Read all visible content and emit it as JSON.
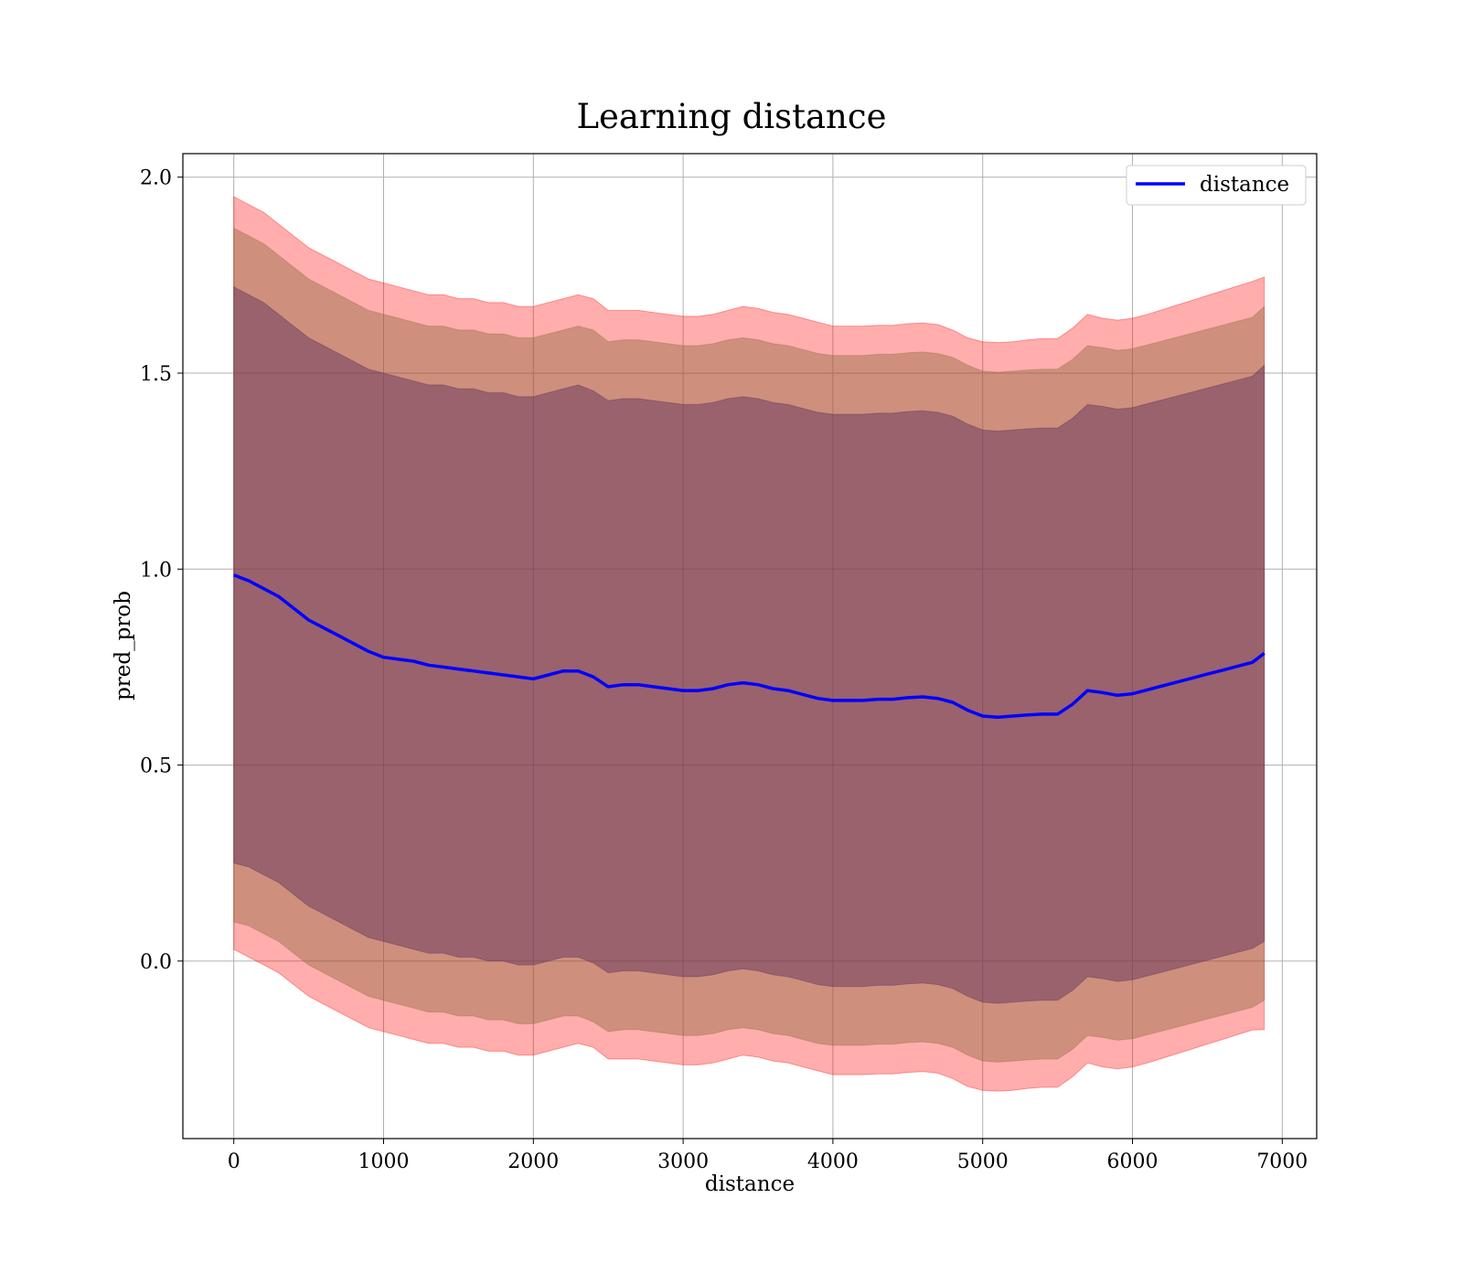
{
  "chart_data": {
    "type": "line",
    "title": "Learning distance",
    "xlabel": "distance",
    "ylabel": "pred_prob",
    "xlim": [
      -340,
      7230
    ],
    "ylim": [
      -0.453,
      2.06
    ],
    "xticks": [
      0,
      1000,
      2000,
      3000,
      4000,
      5000,
      6000,
      7000
    ],
    "xtick_labels": [
      "0",
      "1000",
      "2000",
      "3000",
      "4000",
      "5000",
      "6000",
      "7000"
    ],
    "yticks": [
      0.0,
      0.5,
      1.0,
      1.5,
      2.0
    ],
    "ytick_labels": [
      "0.0",
      "0.5",
      "1.0",
      "1.5",
      "2.0"
    ],
    "grid": true,
    "legend_position": "top-right",
    "series": [
      {
        "name": "distance",
        "color": "#0000ff",
        "x": [
          0,
          100,
          200,
          300,
          400,
          500,
          600,
          700,
          800,
          900,
          1000,
          1100,
          1200,
          1300,
          1400,
          1500,
          1600,
          1700,
          1800,
          1900,
          2000,
          2100,
          2200,
          2300,
          2400,
          2500,
          2600,
          2700,
          2800,
          2900,
          3000,
          3100,
          3200,
          3300,
          3400,
          3500,
          3600,
          3700,
          3800,
          3900,
          4000,
          4100,
          4200,
          4300,
          4400,
          4500,
          4600,
          4700,
          4800,
          4900,
          5000,
          5100,
          5200,
          5300,
          5400,
          5500,
          5600,
          5700,
          5800,
          5900,
          6000,
          6100,
          6200,
          6300,
          6400,
          6500,
          6600,
          6700,
          6800,
          6880
        ],
        "y": [
          0.985,
          0.97,
          0.95,
          0.93,
          0.9,
          0.87,
          0.85,
          0.83,
          0.81,
          0.79,
          0.775,
          0.77,
          0.765,
          0.755,
          0.75,
          0.745,
          0.74,
          0.735,
          0.73,
          0.725,
          0.72,
          0.73,
          0.74,
          0.74,
          0.725,
          0.7,
          0.705,
          0.705,
          0.7,
          0.695,
          0.69,
          0.69,
          0.695,
          0.705,
          0.71,
          0.705,
          0.695,
          0.69,
          0.68,
          0.67,
          0.665,
          0.665,
          0.665,
          0.668,
          0.668,
          0.672,
          0.674,
          0.67,
          0.66,
          0.64,
          0.625,
          0.622,
          0.625,
          0.628,
          0.63,
          0.63,
          0.655,
          0.69,
          0.685,
          0.678,
          0.682,
          0.692,
          0.702,
          0.712,
          0.722,
          0.732,
          0.742,
          0.752,
          0.762,
          0.785
        ]
      }
    ],
    "bands": [
      {
        "color": "#ff0000",
        "opacity": 0.32,
        "upper": [
          1.95,
          1.93,
          1.91,
          1.88,
          1.85,
          1.82,
          1.8,
          1.78,
          1.76,
          1.74,
          1.73,
          1.72,
          1.71,
          1.7,
          1.7,
          1.69,
          1.69,
          1.68,
          1.68,
          1.67,
          1.67,
          1.68,
          1.69,
          1.7,
          1.69,
          1.66,
          1.66,
          1.66,
          1.655,
          1.65,
          1.645,
          1.645,
          1.65,
          1.66,
          1.67,
          1.665,
          1.655,
          1.65,
          1.64,
          1.63,
          1.62,
          1.62,
          1.62,
          1.622,
          1.622,
          1.626,
          1.628,
          1.624,
          1.61,
          1.59,
          1.58,
          1.578,
          1.58,
          1.585,
          1.588,
          1.588,
          1.615,
          1.65,
          1.64,
          1.635,
          1.64,
          1.65,
          1.662,
          1.674,
          1.686,
          1.698,
          1.71,
          1.722,
          1.734,
          1.745
        ],
        "lower": [
          0.03,
          0.01,
          -0.01,
          -0.03,
          -0.06,
          -0.09,
          -0.11,
          -0.13,
          -0.15,
          -0.17,
          -0.18,
          -0.19,
          -0.2,
          -0.21,
          -0.21,
          -0.22,
          -0.22,
          -0.23,
          -0.23,
          -0.24,
          -0.24,
          -0.23,
          -0.22,
          -0.21,
          -0.22,
          -0.25,
          -0.25,
          -0.25,
          -0.255,
          -0.26,
          -0.265,
          -0.265,
          -0.26,
          -0.25,
          -0.24,
          -0.245,
          -0.255,
          -0.26,
          -0.27,
          -0.28,
          -0.29,
          -0.29,
          -0.29,
          -0.288,
          -0.288,
          -0.284,
          -0.282,
          -0.286,
          -0.3,
          -0.32,
          -0.33,
          -0.332,
          -0.33,
          -0.325,
          -0.322,
          -0.322,
          -0.295,
          -0.26,
          -0.27,
          -0.275,
          -0.27,
          -0.26,
          -0.248,
          -0.236,
          -0.224,
          -0.212,
          -0.2,
          -0.188,
          -0.176,
          -0.175
        ]
      },
      {
        "color": "#8b6a3c",
        "opacity": 0.42,
        "upper": [
          1.87,
          1.85,
          1.83,
          1.8,
          1.77,
          1.74,
          1.72,
          1.7,
          1.68,
          1.66,
          1.65,
          1.64,
          1.63,
          1.62,
          1.62,
          1.61,
          1.61,
          1.6,
          1.6,
          1.59,
          1.59,
          1.6,
          1.61,
          1.62,
          1.61,
          1.58,
          1.585,
          1.585,
          1.58,
          1.575,
          1.57,
          1.57,
          1.575,
          1.585,
          1.59,
          1.585,
          1.575,
          1.57,
          1.56,
          1.55,
          1.545,
          1.545,
          1.545,
          1.548,
          1.548,
          1.552,
          1.554,
          1.55,
          1.54,
          1.52,
          1.505,
          1.502,
          1.505,
          1.508,
          1.51,
          1.51,
          1.535,
          1.57,
          1.565,
          1.558,
          1.562,
          1.572,
          1.582,
          1.592,
          1.602,
          1.612,
          1.622,
          1.632,
          1.642,
          1.67
        ],
        "lower": [
          0.1,
          0.09,
          0.07,
          0.05,
          0.02,
          -0.01,
          -0.03,
          -0.05,
          -0.07,
          -0.09,
          -0.1,
          -0.11,
          -0.12,
          -0.13,
          -0.13,
          -0.14,
          -0.14,
          -0.15,
          -0.15,
          -0.16,
          -0.16,
          -0.15,
          -0.14,
          -0.14,
          -0.155,
          -0.18,
          -0.175,
          -0.175,
          -0.18,
          -0.185,
          -0.19,
          -0.19,
          -0.185,
          -0.175,
          -0.17,
          -0.175,
          -0.185,
          -0.19,
          -0.2,
          -0.21,
          -0.215,
          -0.215,
          -0.215,
          -0.212,
          -0.212,
          -0.208,
          -0.206,
          -0.21,
          -0.22,
          -0.24,
          -0.255,
          -0.258,
          -0.255,
          -0.252,
          -0.25,
          -0.25,
          -0.225,
          -0.19,
          -0.195,
          -0.202,
          -0.198,
          -0.188,
          -0.178,
          -0.168,
          -0.158,
          -0.148,
          -0.138,
          -0.128,
          -0.118,
          -0.1
        ]
      },
      {
        "color": "#5a2a5a",
        "opacity": 0.45,
        "upper": [
          1.72,
          1.7,
          1.68,
          1.65,
          1.62,
          1.59,
          1.57,
          1.55,
          1.53,
          1.51,
          1.5,
          1.49,
          1.48,
          1.47,
          1.47,
          1.46,
          1.46,
          1.45,
          1.45,
          1.44,
          1.44,
          1.45,
          1.46,
          1.47,
          1.455,
          1.43,
          1.435,
          1.435,
          1.43,
          1.425,
          1.42,
          1.42,
          1.425,
          1.435,
          1.44,
          1.435,
          1.425,
          1.42,
          1.41,
          1.4,
          1.395,
          1.395,
          1.395,
          1.398,
          1.398,
          1.402,
          1.404,
          1.4,
          1.39,
          1.37,
          1.355,
          1.352,
          1.355,
          1.358,
          1.36,
          1.36,
          1.385,
          1.42,
          1.415,
          1.408,
          1.412,
          1.422,
          1.432,
          1.442,
          1.452,
          1.462,
          1.472,
          1.482,
          1.492,
          1.52
        ],
        "lower": [
          0.25,
          0.24,
          0.22,
          0.2,
          0.17,
          0.14,
          0.12,
          0.1,
          0.08,
          0.06,
          0.05,
          0.04,
          0.03,
          0.02,
          0.02,
          0.01,
          0.01,
          0.0,
          0.0,
          -0.01,
          -0.01,
          0.0,
          0.01,
          0.01,
          -0.005,
          -0.03,
          -0.025,
          -0.025,
          -0.03,
          -0.035,
          -0.04,
          -0.04,
          -0.035,
          -0.025,
          -0.02,
          -0.025,
          -0.035,
          -0.04,
          -0.05,
          -0.06,
          -0.065,
          -0.065,
          -0.065,
          -0.062,
          -0.062,
          -0.058,
          -0.056,
          -0.06,
          -0.07,
          -0.09,
          -0.105,
          -0.108,
          -0.105,
          -0.102,
          -0.1,
          -0.1,
          -0.075,
          -0.04,
          -0.045,
          -0.052,
          -0.048,
          -0.038,
          -0.028,
          -0.018,
          -0.008,
          0.002,
          0.012,
          0.022,
          0.032,
          0.05
        ]
      }
    ]
  }
}
